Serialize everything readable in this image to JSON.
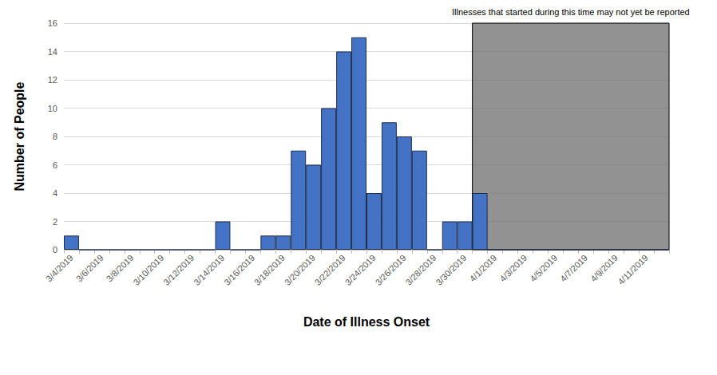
{
  "chart_data": {
    "type": "bar",
    "x_label": "Date of Illness Onset",
    "y_label": "Number of People",
    "categories": [
      "3/4/2019",
      null,
      "3/6/2019",
      null,
      "3/8/2019",
      null,
      "3/10/2019",
      null,
      "3/12/2019",
      null,
      "3/14/2019",
      null,
      "3/16/2019",
      null,
      "3/18/2019",
      null,
      "3/20/2019",
      null,
      "3/22/2019",
      null,
      "3/24/2019",
      null,
      "3/26/2019",
      null,
      "3/28/2019",
      null,
      "3/30/2019",
      null,
      "4/1/2019",
      null,
      "4/3/2019",
      null,
      "4/5/2019",
      null,
      "4/7/2019",
      null,
      "4/9/2019",
      null,
      "4/11/2019",
      null
    ],
    "values": [
      1,
      0,
      0,
      0,
      0,
      0,
      0,
      0,
      0,
      0,
      2,
      0,
      0,
      1,
      1,
      7,
      6,
      10,
      14,
      15,
      4,
      9,
      8,
      7,
      0,
      2,
      2,
      4,
      0,
      0,
      0,
      0,
      0,
      0,
      0,
      0,
      0,
      0,
      0,
      0
    ],
    "color": "#4472c4",
    "ylim": [
      0,
      16
    ],
    "yticks": [
      0,
      2,
      4,
      6,
      8,
      10,
      12,
      14,
      16
    ],
    "grid": true,
    "annotation": {
      "text": "Illnesses that started during this time may not yet be reported",
      "from_index": 27,
      "to_index": 39,
      "y_top": 16
    }
  }
}
